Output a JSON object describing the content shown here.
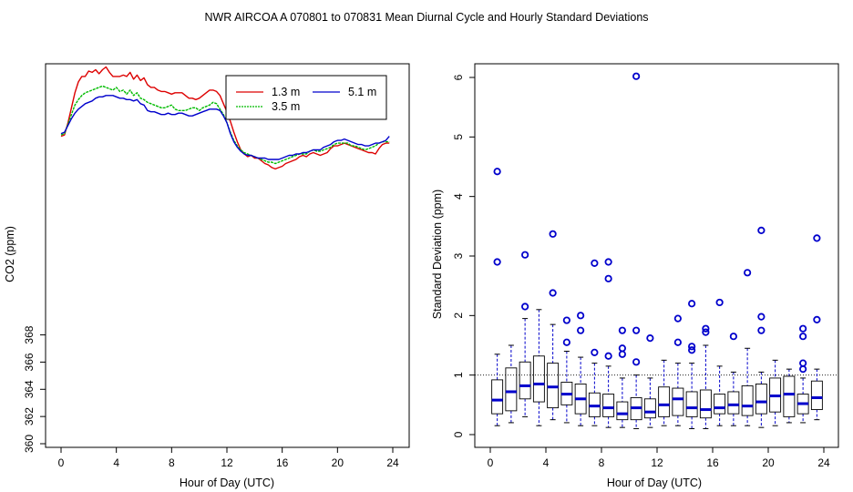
{
  "title": "NWR   AIRCOA A   070801 to 070831   Mean Diurnal Cycle and Hourly Standard Deviations",
  "colors": {
    "s13": "#dd0000",
    "s35": "#00bb00",
    "s51": "#0000cc",
    "box": "#0000cc",
    "outlier": "#0000cc",
    "axis": "#000000"
  },
  "chart_data": [
    {
      "type": "line",
      "xlabel": "Hour of Day (UTC)",
      "ylabel": "CO2 (ppm)",
      "xlim": [
        0,
        24
      ],
      "ylim": [
        360,
        388
      ],
      "xticks": [
        0,
        4,
        8,
        12,
        16,
        20,
        24
      ],
      "yticks": [
        360,
        362,
        364,
        366,
        368
      ],
      "legend": {
        "position": "top-right",
        "entries": [
          "1.3 m",
          "3.5 m",
          "5.1 m"
        ]
      },
      "x": [
        0,
        0.25,
        0.5,
        0.75,
        1,
        1.25,
        1.5,
        1.75,
        2,
        2.25,
        2.5,
        2.75,
        3,
        3.25,
        3.5,
        3.75,
        4,
        4.25,
        4.5,
        4.75,
        5,
        5.25,
        5.5,
        5.75,
        6,
        6.25,
        6.5,
        6.75,
        7,
        7.25,
        7.5,
        7.75,
        8,
        8.25,
        8.5,
        8.75,
        9,
        9.25,
        9.5,
        9.75,
        10,
        10.25,
        10.5,
        10.75,
        11,
        11.25,
        11.5,
        11.75,
        12,
        12.25,
        12.5,
        12.75,
        13,
        13.25,
        13.5,
        13.75,
        14,
        14.25,
        14.5,
        14.75,
        15,
        15.25,
        15.5,
        15.75,
        16,
        16.25,
        16.5,
        16.75,
        17,
        17.25,
        17.5,
        17.75,
        18,
        18.25,
        18.5,
        18.75,
        19,
        19.25,
        19.5,
        19.75,
        20,
        20.25,
        20.5,
        20.75,
        21,
        21.25,
        21.5,
        21.75,
        22,
        22.25,
        22.5,
        22.75,
        23,
        23.25,
        23.5,
        23.75
      ],
      "series": [
        {
          "name": "1.3 m",
          "values": [
            382.6,
            382.7,
            383.6,
            384.7,
            385.8,
            386.6,
            387.0,
            387.0,
            387.4,
            387.3,
            387.5,
            387.2,
            387.5,
            387.7,
            387.3,
            387.0,
            387.0,
            387.0,
            387.1,
            387.0,
            387.3,
            386.8,
            387.1,
            386.7,
            386.9,
            386.4,
            386.2,
            386.2,
            386.0,
            385.9,
            385.9,
            385.8,
            385.7,
            385.8,
            385.8,
            385.8,
            385.6,
            385.4,
            385.4,
            385.3,
            385.4,
            385.6,
            385.8,
            386.0,
            386.0,
            385.9,
            385.6,
            385.0,
            384.4,
            383.7,
            382.9,
            382.2,
            381.6,
            381.3,
            381.1,
            381.2,
            381.0,
            381.0,
            380.8,
            380.6,
            380.5,
            380.3,
            380.2,
            380.3,
            380.4,
            380.6,
            380.7,
            380.8,
            380.9,
            381.1,
            381.2,
            381.1,
            381.3,
            381.4,
            381.3,
            381.2,
            381.3,
            381.4,
            381.7,
            381.9,
            381.9,
            382.0,
            382.1,
            382.0,
            381.9,
            381.8,
            381.7,
            381.6,
            381.5,
            381.4,
            381.4,
            381.3,
            381.7,
            382.0,
            382.1,
            382.1
          ]
        },
        {
          "name": "3.5 m",
          "values": [
            382.7,
            382.8,
            383.5,
            384.2,
            384.9,
            385.3,
            385.6,
            385.8,
            385.9,
            386.0,
            386.1,
            386.2,
            386.3,
            386.2,
            386.1,
            386.0,
            386.2,
            385.9,
            386.0,
            385.7,
            386.0,
            385.6,
            385.8,
            385.4,
            385.3,
            385.1,
            385.0,
            384.9,
            384.8,
            384.7,
            384.7,
            384.8,
            384.9,
            384.6,
            384.5,
            384.5,
            384.5,
            384.6,
            384.7,
            384.7,
            384.5,
            384.7,
            384.8,
            384.9,
            385.1,
            385.0,
            384.6,
            384.2,
            383.6,
            382.9,
            382.3,
            381.9,
            381.6,
            381.4,
            381.3,
            381.2,
            381.1,
            381.0,
            380.9,
            380.8,
            380.7,
            380.7,
            380.6,
            380.7,
            380.8,
            380.9,
            381.0,
            381.1,
            381.2,
            381.3,
            381.3,
            381.3,
            381.5,
            381.6,
            381.5,
            381.5,
            381.6,
            381.7,
            381.8,
            382.0,
            382.1,
            382.1,
            382.1,
            382.1,
            381.9,
            381.9,
            381.8,
            381.7,
            381.6,
            381.7,
            381.8,
            381.9,
            382.1,
            382.2,
            382.2,
            382.2
          ]
        },
        {
          "name": "5.1 m",
          "values": [
            382.8,
            382.9,
            383.4,
            383.9,
            384.3,
            384.6,
            384.8,
            385.0,
            385.1,
            385.2,
            385.4,
            385.5,
            385.5,
            385.6,
            385.6,
            385.6,
            385.5,
            385.4,
            385.4,
            385.3,
            385.3,
            385.2,
            385.3,
            385.0,
            384.9,
            384.5,
            384.4,
            384.4,
            384.3,
            384.2,
            384.2,
            384.3,
            384.2,
            384.2,
            384.3,
            384.3,
            384.2,
            384.1,
            384.1,
            384.2,
            384.3,
            384.4,
            384.5,
            384.6,
            384.6,
            384.6,
            384.5,
            384.1,
            383.6,
            382.8,
            382.2,
            381.8,
            381.5,
            381.3,
            381.2,
            381.2,
            381.1,
            381.0,
            381.0,
            381.0,
            380.9,
            380.9,
            380.9,
            380.9,
            381.0,
            381.1,
            381.2,
            381.2,
            381.3,
            381.3,
            381.4,
            381.4,
            381.5,
            381.6,
            381.6,
            381.6,
            381.8,
            381.9,
            382.0,
            382.2,
            382.3,
            382.3,
            382.4,
            382.3,
            382.2,
            382.1,
            382.0,
            382.0,
            381.9,
            381.9,
            382.0,
            382.1,
            382.1,
            382.2,
            382.3,
            382.6
          ]
        }
      ]
    },
    {
      "type": "box",
      "xlabel": "Hour of Day (UTC)",
      "ylabel": "Standard Deviation (ppm)",
      "xlim": [
        0,
        24
      ],
      "ylim": [
        0,
        6
      ],
      "xticks": [
        0,
        4,
        8,
        12,
        16,
        20,
        24
      ],
      "yticks": [
        0,
        1,
        2,
        3,
        4,
        5,
        6
      ],
      "reference_line": 1.0,
      "boxes": [
        {
          "x": 0.5,
          "min": 0.15,
          "q1": 0.35,
          "median": 0.58,
          "q3": 0.92,
          "max": 1.35,
          "outliers": [
            2.9,
            4.42
          ]
        },
        {
          "x": 1.5,
          "min": 0.2,
          "q1": 0.4,
          "median": 0.72,
          "q3": 1.12,
          "max": 1.5,
          "outliers": []
        },
        {
          "x": 2.5,
          "min": 0.3,
          "q1": 0.6,
          "median": 0.82,
          "q3": 1.22,
          "max": 1.95,
          "outliers": [
            2.15,
            3.02
          ]
        },
        {
          "x": 3.5,
          "min": 0.15,
          "q1": 0.55,
          "median": 0.85,
          "q3": 1.32,
          "max": 2.1,
          "outliers": []
        },
        {
          "x": 4.5,
          "min": 0.25,
          "q1": 0.45,
          "median": 0.8,
          "q3": 1.2,
          "max": 1.85,
          "outliers": [
            2.38,
            3.37
          ]
        },
        {
          "x": 5.5,
          "min": 0.2,
          "q1": 0.5,
          "median": 0.68,
          "q3": 0.88,
          "max": 1.4,
          "outliers": [
            1.55,
            1.92
          ]
        },
        {
          "x": 6.5,
          "min": 0.15,
          "q1": 0.35,
          "median": 0.6,
          "q3": 0.85,
          "max": 1.3,
          "outliers": [
            1.75,
            2.0
          ]
        },
        {
          "x": 7.5,
          "min": 0.15,
          "q1": 0.3,
          "median": 0.48,
          "q3": 0.7,
          "max": 1.2,
          "outliers": [
            1.38,
            2.88
          ]
        },
        {
          "x": 8.5,
          "min": 0.12,
          "q1": 0.3,
          "median": 0.45,
          "q3": 0.68,
          "max": 1.15,
          "outliers": [
            1.32,
            2.62,
            2.9
          ]
        },
        {
          "x": 9.5,
          "min": 0.12,
          "q1": 0.25,
          "median": 0.35,
          "q3": 0.55,
          "max": 0.95,
          "outliers": [
            1.35,
            1.45,
            1.75
          ]
        },
        {
          "x": 10.5,
          "min": 0.1,
          "q1": 0.25,
          "median": 0.45,
          "q3": 0.62,
          "max": 1.0,
          "outliers": [
            1.22,
            1.75,
            6.02
          ]
        },
        {
          "x": 11.5,
          "min": 0.12,
          "q1": 0.28,
          "median": 0.38,
          "q3": 0.6,
          "max": 0.95,
          "outliers": [
            1.62
          ]
        },
        {
          "x": 12.5,
          "min": 0.15,
          "q1": 0.3,
          "median": 0.5,
          "q3": 0.8,
          "max": 1.25,
          "outliers": []
        },
        {
          "x": 13.5,
          "min": 0.15,
          "q1": 0.32,
          "median": 0.6,
          "q3": 0.78,
          "max": 1.2,
          "outliers": [
            1.55,
            1.95
          ]
        },
        {
          "x": 14.5,
          "min": 0.1,
          "q1": 0.3,
          "median": 0.45,
          "q3": 0.72,
          "max": 1.2,
          "outliers": [
            1.42,
            1.48,
            2.2
          ]
        },
        {
          "x": 15.5,
          "min": 0.1,
          "q1": 0.28,
          "median": 0.42,
          "q3": 0.75,
          "max": 1.5,
          "outliers": [
            1.72,
            1.78
          ]
        },
        {
          "x": 16.5,
          "min": 0.15,
          "q1": 0.35,
          "median": 0.45,
          "q3": 0.68,
          "max": 1.15,
          "outliers": [
            2.22
          ]
        },
        {
          "x": 17.5,
          "min": 0.15,
          "q1": 0.35,
          "median": 0.5,
          "q3": 0.72,
          "max": 1.05,
          "outliers": [
            1.65
          ]
        },
        {
          "x": 18.5,
          "min": 0.15,
          "q1": 0.32,
          "median": 0.48,
          "q3": 0.82,
          "max": 1.45,
          "outliers": [
            2.72
          ]
        },
        {
          "x": 19.5,
          "min": 0.12,
          "q1": 0.35,
          "median": 0.55,
          "q3": 0.85,
          "max": 1.05,
          "outliers": [
            1.75,
            1.98,
            3.43
          ]
        },
        {
          "x": 20.5,
          "min": 0.15,
          "q1": 0.38,
          "median": 0.65,
          "q3": 0.95,
          "max": 1.25,
          "outliers": []
        },
        {
          "x": 21.5,
          "min": 0.2,
          "q1": 0.3,
          "median": 0.68,
          "q3": 0.98,
          "max": 1.1,
          "outliers": []
        },
        {
          "x": 22.5,
          "min": 0.2,
          "q1": 0.35,
          "median": 0.52,
          "q3": 0.68,
          "max": 0.95,
          "outliers": [
            1.1,
            1.2,
            1.65,
            1.78
          ]
        },
        {
          "x": 23.5,
          "min": 0.25,
          "q1": 0.42,
          "median": 0.62,
          "q3": 0.9,
          "max": 1.1,
          "outliers": [
            1.93,
            3.3
          ]
        }
      ]
    }
  ]
}
